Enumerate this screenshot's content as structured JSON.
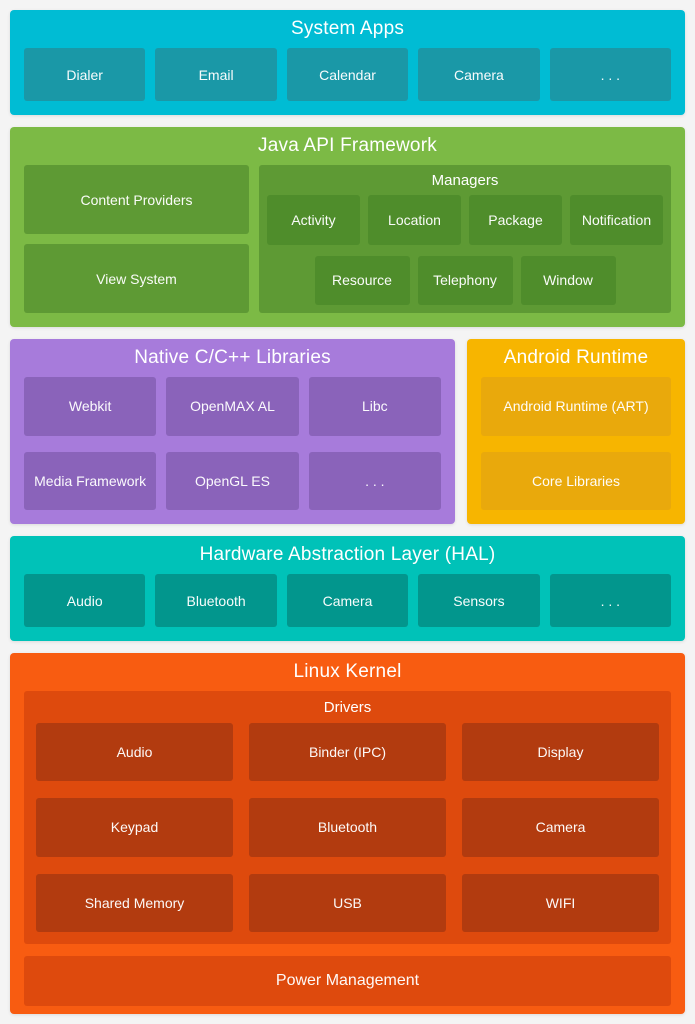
{
  "colors": {
    "background": "#F4F4F4",
    "sysapps-outer": "#00BCD4",
    "sysapps-inner": "#1A98A7",
    "java-outer": "#7CBA45",
    "java-inner": "#5E9A34",
    "java-chip": "#4F8D2B",
    "native-outer": "#A77BDB",
    "native-inner": "#8A63BA",
    "runtime-outer": "#F7B500",
    "runtime-inner": "#E9A90C",
    "hal-outer": "#00C2B8",
    "hal-inner": "#02968D",
    "kernel-outer": "#F85C11",
    "kernel-mid": "#DE4A0D",
    "kernel-box": "#B23B0F"
  },
  "layers": {
    "system_apps": {
      "title": "System Apps",
      "items": [
        "Dialer",
        "Email",
        "Calendar",
        "Camera",
        ". . ."
      ]
    },
    "java_api": {
      "title": "Java API Framework",
      "left_items": [
        "Content Providers",
        "View System"
      ],
      "managers": {
        "title": "Managers",
        "row1": [
          "Activity",
          "Location",
          "Package",
          "Notification"
        ],
        "row2": [
          "Resource",
          "Telephony",
          "Window"
        ]
      }
    },
    "native_libs": {
      "title": "Native C/C++ Libraries",
      "row1": [
        "Webkit",
        "OpenMAX AL",
        "Libc"
      ],
      "row2": [
        "Media Framework",
        "OpenGL ES",
        ". . ."
      ]
    },
    "android_runtime": {
      "title": "Android Runtime",
      "items": [
        "Android Runtime (ART)",
        "Core Libraries"
      ]
    },
    "hal": {
      "title": "Hardware Abstraction Layer (HAL)",
      "items": [
        "Audio",
        "Bluetooth",
        "Camera",
        "Sensors",
        ". . ."
      ]
    },
    "linux_kernel": {
      "title": "Linux Kernel",
      "drivers": {
        "title": "Drivers",
        "grid": [
          [
            "Audio",
            "Binder (IPC)",
            "Display"
          ],
          [
            "Keypad",
            "Bluetooth",
            "Camera"
          ],
          [
            "Shared Memory",
            "USB",
            "WIFI"
          ]
        ]
      },
      "power": "Power Management"
    }
  }
}
